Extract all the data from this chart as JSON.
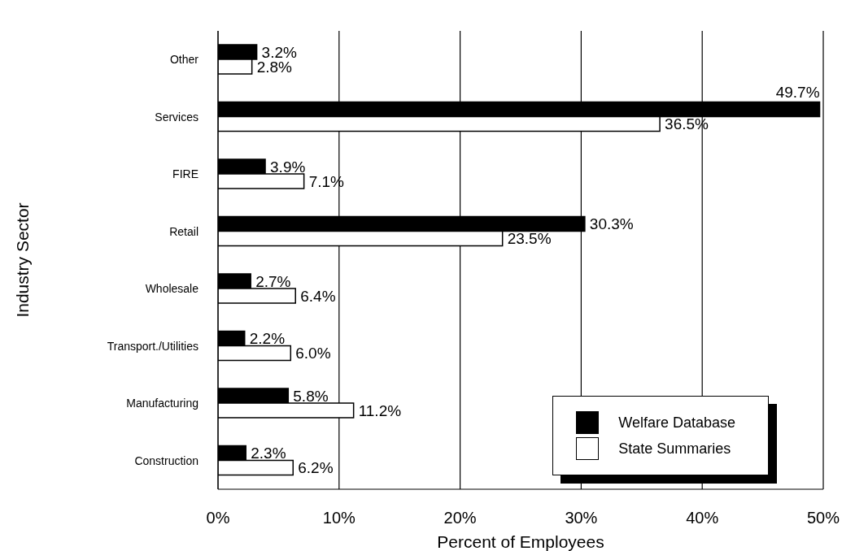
{
  "chart_data": {
    "type": "bar",
    "orientation": "horizontal",
    "xlabel": "Percent of Employees",
    "ylabel": "Industry Sector",
    "categories": [
      "Other",
      "Services",
      "FIRE",
      "Retail",
      "Wholesale",
      "Transport./Utilities",
      "Manufacturing",
      "Construction"
    ],
    "series": [
      {
        "name": "Welfare Database",
        "color": "#000000",
        "values": [
          3.2,
          49.7,
          3.9,
          30.3,
          2.7,
          2.2,
          5.8,
          2.3
        ],
        "value_labels": [
          "3.2%",
          "49.7%",
          "3.9%",
          "30.3%",
          "2.7%",
          "2.2%",
          "5.8%",
          "2.3%"
        ]
      },
      {
        "name": "State Summaries",
        "color": "#ffffff",
        "values": [
          2.8,
          36.5,
          7.1,
          23.5,
          6.4,
          6.0,
          11.2,
          6.2
        ],
        "value_labels": [
          "2.8%",
          "36.5%",
          "7.1%",
          "23.5%",
          "6.4%",
          "6.0%",
          "11.2%",
          "6.2%"
        ]
      }
    ],
    "xlim": [
      0,
      50
    ],
    "xticks": [
      {
        "value": 0,
        "label": "0%"
      },
      {
        "value": 10,
        "label": "10%"
      },
      {
        "value": 20,
        "label": "20%"
      },
      {
        "value": 30,
        "label": "30%"
      },
      {
        "value": 40,
        "label": "40%"
      },
      {
        "value": 50,
        "label": "50%"
      }
    ],
    "grid": "x",
    "legend": "bottom right"
  }
}
